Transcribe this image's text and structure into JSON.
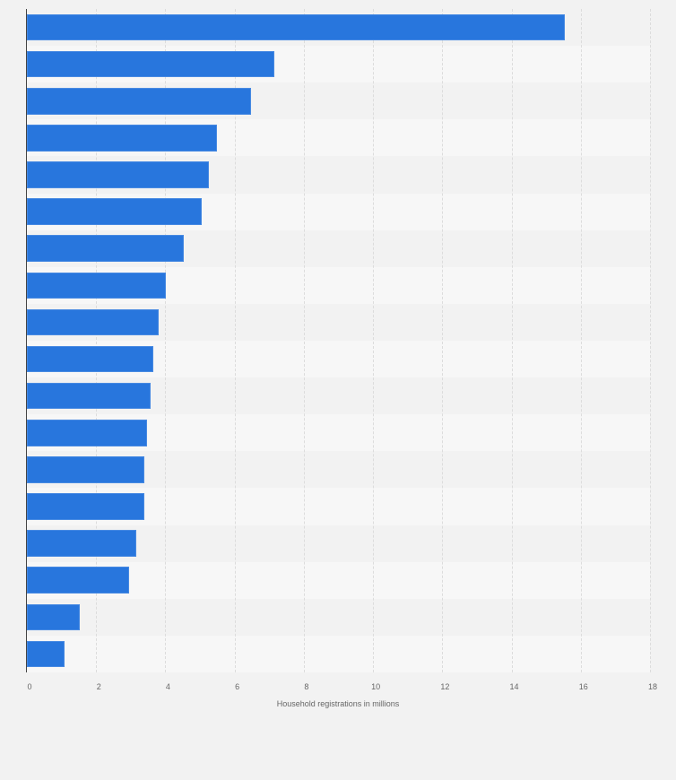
{
  "chart_data": {
    "type": "bar",
    "orientation": "horizontal",
    "title": "",
    "xlabel": "Household registrations in millions",
    "ylabel": "",
    "categories": [
      "",
      "",
      "",
      "",
      "",
      "",
      "",
      "",
      "",
      "",
      "",
      "",
      "",
      "",
      "",
      "",
      "",
      ""
    ],
    "values": [
      15.55,
      7.15,
      6.48,
      5.5,
      5.27,
      5.05,
      4.54,
      4.02,
      3.82,
      3.64,
      3.58,
      3.48,
      3.4,
      3.38,
      3.17,
      2.96,
      1.53,
      1.08
    ],
    "xlim": [
      0,
      18
    ],
    "xticks": [
      "0",
      "2",
      "4",
      "6",
      "8",
      "10",
      "12",
      "14",
      "16",
      "18"
    ],
    "grid": true,
    "legend": null,
    "bar_color": "#2876dd"
  },
  "colors": {
    "background": "#f2f2f2",
    "band_odd": "#f2f2f2",
    "band_even": "#f7f7f7",
    "bar": "#2876dd",
    "gridline": "#dcdcdc",
    "axis": "#444444",
    "tick_text": "#666666"
  }
}
